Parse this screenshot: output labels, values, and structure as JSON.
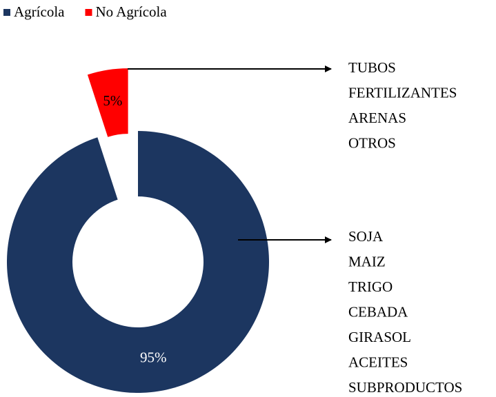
{
  "chart_data": {
    "type": "donut",
    "categories": [
      "Agrícola",
      "No Agrícola"
    ],
    "values": [
      95,
      5
    ],
    "value_labels": [
      "95%",
      "5%"
    ],
    "colors": [
      "#1c3660",
      "#ff0000"
    ],
    "label_colors": [
      "#ffffff",
      "#000000"
    ],
    "exploded": [
      false,
      true
    ],
    "legend": "top-left",
    "slice_notes": [
      [
        "SOJA",
        "MAIZ",
        "TRIGO",
        "CEBADA",
        "GIRASOL",
        "ACEITES",
        "SUBPRODUCTOS"
      ],
      [
        "TUBOS",
        "FERTILIZANTES",
        "ARENAS",
        "OTROS"
      ]
    ]
  }
}
